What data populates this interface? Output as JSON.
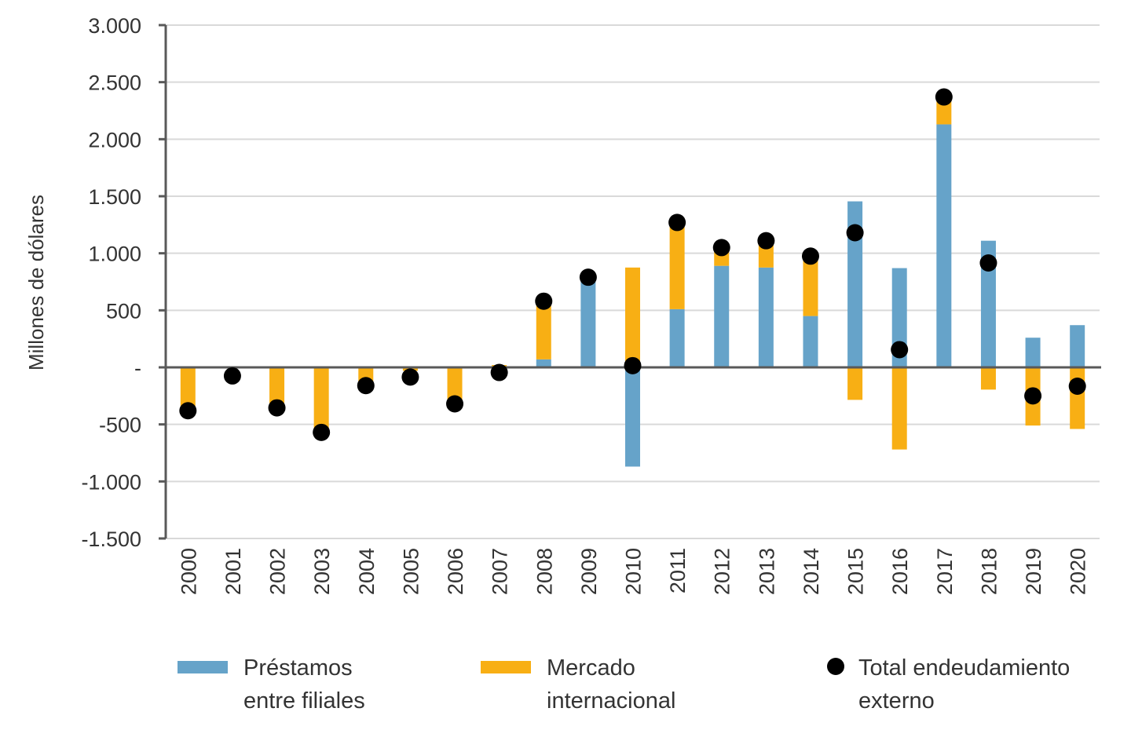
{
  "chart_data": {
    "type": "bar",
    "stacked": true,
    "title": "",
    "xlabel": "",
    "ylabel": "Millones de dólares",
    "ylim": [
      -1500,
      3000
    ],
    "yticks": [
      -1500,
      -1000,
      -500,
      0,
      500,
      1000,
      1500,
      2000,
      2500,
      3000
    ],
    "ytick_labels": [
      "-1.500",
      "-1.000",
      "-500",
      "-",
      "500",
      "1.000",
      "1.500",
      "2.000",
      "2.500",
      "3.000"
    ],
    "grid": true,
    "legend_position": "bottom",
    "categories": [
      "2000",
      "2001",
      "2002",
      "2003",
      "2004",
      "2005",
      "2006",
      "2007",
      "2008",
      "2009",
      "2010",
      "2011",
      "2012",
      "2013",
      "2014",
      "2015",
      "2016",
      "2017",
      "2018",
      "2019",
      "2020"
    ],
    "series": [
      {
        "name": "Préstamos entre filiales",
        "type": "bar",
        "color": "#66A3C9",
        "values": [
          0,
          0,
          0,
          0,
          0,
          0,
          0,
          0,
          70,
          775,
          -870,
          510,
          890,
          875,
          450,
          1455,
          870,
          2130,
          1110,
          260,
          370
        ]
      },
      {
        "name": "Mercado internacional",
        "type": "bar",
        "color": "#F8AF14",
        "values": [
          -370,
          -10,
          -340,
          -570,
          -140,
          -30,
          -300,
          20,
          505,
          0,
          875,
          760,
          160,
          235,
          495,
          -285,
          -720,
          205,
          -195,
          -510,
          -540
        ]
      },
      {
        "name": "Total endeudamiento externo",
        "type": "scatter",
        "color": "#000000",
        "values": [
          -380,
          -75,
          -355,
          -570,
          -160,
          -85,
          -320,
          -45,
          580,
          790,
          15,
          1270,
          1050,
          1110,
          975,
          1180,
          155,
          2370,
          915,
          -250,
          -165
        ]
      }
    ]
  },
  "legend": [
    {
      "label": "Préstamos\nentre filiales",
      "color": "#66A3C9",
      "kind": "swatch"
    },
    {
      "label": "Mercado\ninternacional",
      "color": "#F8AF14",
      "kind": "swatch"
    },
    {
      "label": "Total endeudamiento\nexterno",
      "color": "#000000",
      "kind": "dot"
    }
  ]
}
